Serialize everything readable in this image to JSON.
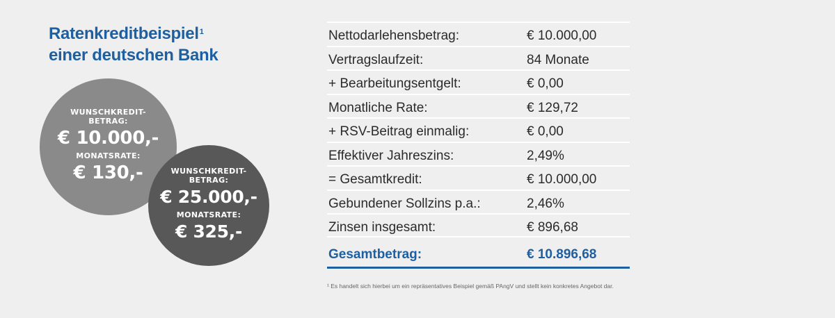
{
  "heading": {
    "line1": "Ratenkreditbeispiel",
    "sup": "1",
    "line2": "einer deutschen Bank"
  },
  "circles": [
    {
      "label_line1": "WUNSCHKREDIT-",
      "label_line2": "BETRAG:",
      "amount": "€ 10.000,-",
      "rate_label": "MONATSRATE:",
      "rate": "€ 130,-"
    },
    {
      "label_line1": "WUNSCHKREDIT-",
      "label_line2": "BETRAG:",
      "amount": "€ 25.000,-",
      "rate_label": "MONATSRATE:",
      "rate": "€ 325,-"
    }
  ],
  "table": {
    "rows": [
      {
        "label": "Nettodarlehensbetrag:",
        "value": "€ 10.000,00"
      },
      {
        "label": "Vertragslaufzeit:",
        "value": "84 Monate"
      },
      {
        "label": "+ Bearbeitungsentgelt:",
        "value": "€ 0,00"
      },
      {
        "label": "Monatliche Rate:",
        "value": "€ 129,72"
      },
      {
        "label": "+ RSV-Beitrag einmalig:",
        "value": "€ 0,00"
      },
      {
        "label": "Effektiver Jahreszins:",
        "value": "2,49%"
      },
      {
        "label": "= Gesamtkredit:",
        "value": "€ 10.000,00"
      },
      {
        "label": "Gebundener Sollzins p.a.:",
        "value": "2,46%"
      },
      {
        "label": "Zinsen insgesamt:",
        "value": "€ 896,68"
      }
    ],
    "total": {
      "label": "Gesamtbetrag:",
      "value": "€ 10.896,68"
    }
  },
  "footnote": "¹ Es handelt sich hierbei um ein repräsentatives Beispiel gemäß PAngV und stellt kein konkretes Angebot dar.",
  "colors": {
    "accent": "#1f5fa0",
    "circle_light": "#8a8a8a",
    "circle_dark": "#585858",
    "background": "#efefef"
  }
}
